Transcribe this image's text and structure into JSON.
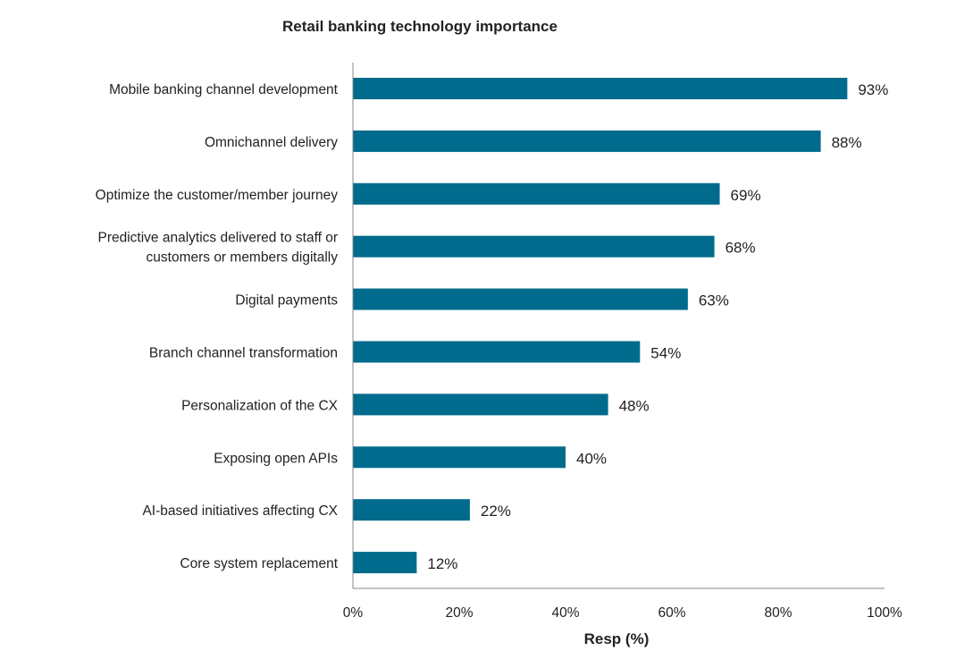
{
  "chart_data": {
    "type": "bar",
    "orientation": "horizontal",
    "title": "Retail banking technology importance",
    "xlabel": "Resp (%)",
    "ylabel": "",
    "xlim": [
      0,
      100
    ],
    "x_ticks": [
      "0%",
      "20%",
      "40%",
      "60%",
      "80%",
      "100%"
    ],
    "grid": false,
    "categories": [
      [
        "Mobile banking channel development"
      ],
      [
        "Omnichannel delivery"
      ],
      [
        "Optimize the customer/member journey"
      ],
      [
        "Predictive analytics delivered to staff or",
        "customers or members digitally"
      ],
      [
        "Digital payments"
      ],
      [
        "Branch channel transformation"
      ],
      [
        "Personalization of the CX"
      ],
      [
        "Exposing open APIs"
      ],
      [
        "AI-based initiatives affecting CX"
      ],
      [
        "Core system replacement"
      ]
    ],
    "values": [
      93,
      88,
      69,
      68,
      63,
      54,
      48,
      40,
      22,
      12
    ],
    "data_labels": [
      "93%",
      "88%",
      "69%",
      "68%",
      "63%",
      "54%",
      "48%",
      "40%",
      "22%",
      "12%"
    ],
    "bar_color": "#006b8c"
  }
}
